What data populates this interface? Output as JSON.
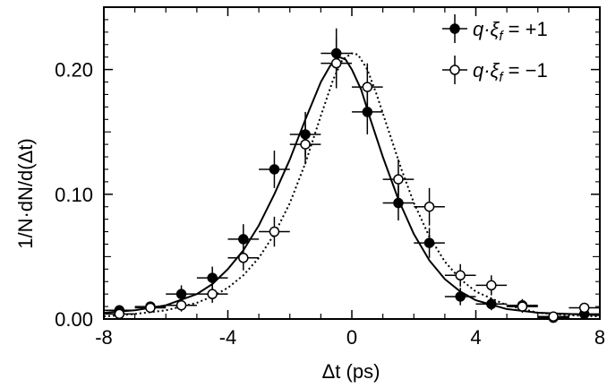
{
  "chart_data": {
    "type": "scatter",
    "xlabel": "Δt (ps)",
    "ylabel": "1/N·dN/d(Δt)",
    "xlim": [
      -8,
      8
    ],
    "ylim": [
      0,
      0.25
    ],
    "x_ticks": [
      -8,
      -4,
      0,
      4,
      8
    ],
    "x_tick_labels": [
      "-8",
      "-4",
      "0",
      "4",
      "8"
    ],
    "y_ticks": [
      0.0,
      0.1,
      0.2
    ],
    "y_tick_labels": [
      "0.00",
      "0.10",
      "0.20"
    ],
    "grid": false,
    "legend_position": "top-right",
    "series": [
      {
        "name": "q·ξ_f = +1",
        "legend_label": "q·ξ",
        "legend_sub": "f",
        "legend_value": " = +1",
        "marker": "filled-circle",
        "curve_style": "solid",
        "x_err": 0.5,
        "points": [
          {
            "x": -7.5,
            "y": 0.007,
            "yerr": 0.004
          },
          {
            "x": -6.5,
            "y": 0.01,
            "yerr": 0.004
          },
          {
            "x": -5.5,
            "y": 0.02,
            "yerr": 0.007
          },
          {
            "x": -4.5,
            "y": 0.033,
            "yerr": 0.009
          },
          {
            "x": -3.5,
            "y": 0.064,
            "yerr": 0.012
          },
          {
            "x": -2.5,
            "y": 0.12,
            "yerr": 0.015
          },
          {
            "x": -1.5,
            "y": 0.148,
            "yerr": 0.018
          },
          {
            "x": -0.5,
            "y": 0.213,
            "yerr": 0.02
          },
          {
            "x": 0.5,
            "y": 0.166,
            "yerr": 0.018
          },
          {
            "x": 1.5,
            "y": 0.093,
            "yerr": 0.014
          },
          {
            "x": 2.5,
            "y": 0.061,
            "yerr": 0.012
          },
          {
            "x": 3.5,
            "y": 0.018,
            "yerr": 0.007
          },
          {
            "x": 4.5,
            "y": 0.012,
            "yerr": 0.005
          },
          {
            "x": 5.5,
            "y": 0.011,
            "yerr": 0.005
          },
          {
            "x": 6.5,
            "y": 0.001,
            "yerr": 0.003
          },
          {
            "x": 7.5,
            "y": 0.004,
            "yerr": 0.004
          }
        ]
      },
      {
        "name": "q·ξ_f = −1",
        "legend_label": "q·ξ",
        "legend_sub": "f",
        "legend_value": " = −1",
        "marker": "open-circle",
        "curve_style": "dotted",
        "x_err": 0.5,
        "points": [
          {
            "x": -7.5,
            "y": 0.004,
            "yerr": 0.004
          },
          {
            "x": -6.5,
            "y": 0.009,
            "yerr": 0.004
          },
          {
            "x": -5.5,
            "y": 0.011,
            "yerr": 0.005
          },
          {
            "x": -4.5,
            "y": 0.02,
            "yerr": 0.007
          },
          {
            "x": -3.5,
            "y": 0.049,
            "yerr": 0.01
          },
          {
            "x": -2.5,
            "y": 0.07,
            "yerr": 0.012
          },
          {
            "x": -1.5,
            "y": 0.14,
            "yerr": 0.016
          },
          {
            "x": -0.5,
            "y": 0.205,
            "yerr": 0.02
          },
          {
            "x": 0.5,
            "y": 0.186,
            "yerr": 0.019
          },
          {
            "x": 1.5,
            "y": 0.112,
            "yerr": 0.016
          },
          {
            "x": 2.5,
            "y": 0.09,
            "yerr": 0.015
          },
          {
            "x": 3.5,
            "y": 0.035,
            "yerr": 0.009
          },
          {
            "x": 4.5,
            "y": 0.027,
            "yerr": 0.008
          },
          {
            "x": 5.5,
            "y": 0.01,
            "yerr": 0.005
          },
          {
            "x": 6.5,
            "y": 0.002,
            "yerr": 0.003
          },
          {
            "x": 7.5,
            "y": 0.009,
            "yerr": 0.004
          }
        ]
      }
    ],
    "curves": [
      {
        "style": "solid",
        "points": [
          [
            -8.0,
            0.005
          ],
          [
            -7.0,
            0.007
          ],
          [
            -6.0,
            0.011
          ],
          [
            -5.0,
            0.02
          ],
          [
            -4.5,
            0.028
          ],
          [
            -4.0,
            0.04
          ],
          [
            -3.5,
            0.055
          ],
          [
            -3.0,
            0.075
          ],
          [
            -2.5,
            0.1
          ],
          [
            -2.0,
            0.128
          ],
          [
            -1.5,
            0.16
          ],
          [
            -1.0,
            0.19
          ],
          [
            -0.7,
            0.203
          ],
          [
            -0.4,
            0.21
          ],
          [
            -0.2,
            0.208
          ],
          [
            0.0,
            0.2
          ],
          [
            0.3,
            0.184
          ],
          [
            0.6,
            0.16
          ],
          [
            1.0,
            0.13
          ],
          [
            1.5,
            0.096
          ],
          [
            2.0,
            0.068
          ],
          [
            2.5,
            0.047
          ],
          [
            3.0,
            0.032
          ],
          [
            3.5,
            0.022
          ],
          [
            4.0,
            0.015
          ],
          [
            5.0,
            0.008
          ],
          [
            6.0,
            0.005
          ],
          [
            7.0,
            0.004
          ],
          [
            8.0,
            0.003
          ]
        ]
      },
      {
        "style": "dotted",
        "points": [
          [
            -8.0,
            0.002
          ],
          [
            -7.0,
            0.004
          ],
          [
            -6.0,
            0.007
          ],
          [
            -5.0,
            0.013
          ],
          [
            -4.5,
            0.018
          ],
          [
            -4.0,
            0.025
          ],
          [
            -3.5,
            0.035
          ],
          [
            -3.0,
            0.049
          ],
          [
            -2.5,
            0.068
          ],
          [
            -2.0,
            0.093
          ],
          [
            -1.5,
            0.125
          ],
          [
            -1.0,
            0.163
          ],
          [
            -0.6,
            0.192
          ],
          [
            -0.3,
            0.208
          ],
          [
            0.0,
            0.213
          ],
          [
            0.2,
            0.212
          ],
          [
            0.5,
            0.2
          ],
          [
            0.8,
            0.18
          ],
          [
            1.2,
            0.15
          ],
          [
            1.6,
            0.12
          ],
          [
            2.0,
            0.093
          ],
          [
            2.5,
            0.066
          ],
          [
            3.0,
            0.046
          ],
          [
            3.5,
            0.032
          ],
          [
            4.0,
            0.022
          ],
          [
            5.0,
            0.011
          ],
          [
            6.0,
            0.005
          ],
          [
            7.0,
            0.003
          ],
          [
            8.0,
            0.002
          ]
        ]
      }
    ]
  }
}
